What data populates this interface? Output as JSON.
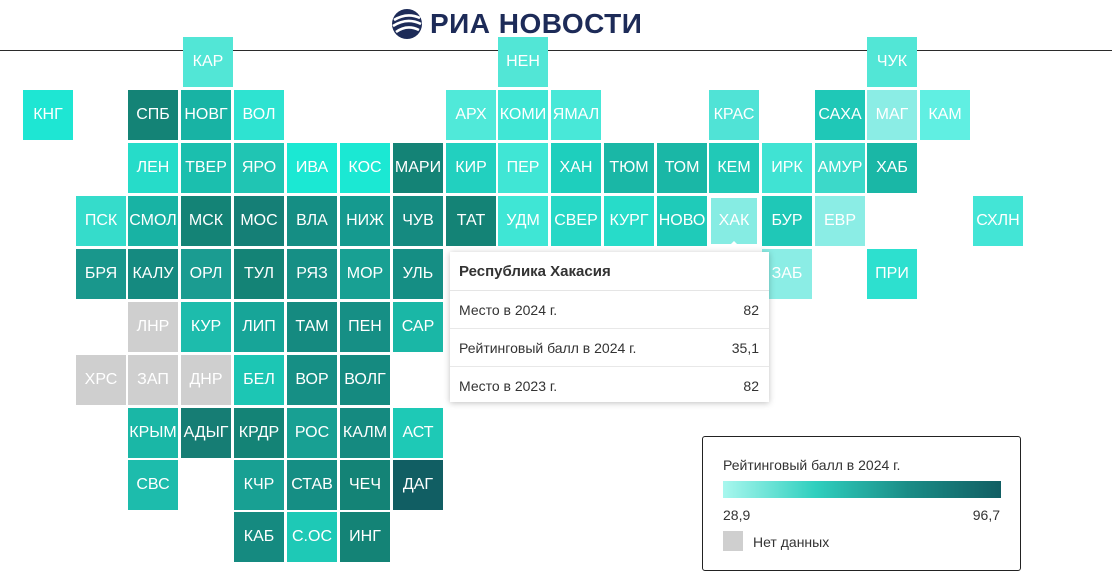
{
  "header": {
    "brand": "РИА НОВОСТИ"
  },
  "colors": {
    "no_data": "#cfcfcf",
    "scale_min": "#a8f7ee",
    "scale_max": "#115e63"
  },
  "tiles": [
    {
      "label": "КАР",
      "color": "#52e6d6"
    },
    {
      "label": "НЕН",
      "color": "#52e6d6"
    },
    {
      "label": "ЧУК",
      "color": "#52e6d6"
    },
    {
      "label": "КНГ",
      "color": "#1ee6d3"
    },
    {
      "label": "СПБ",
      "color": "#148376"
    },
    {
      "label": "НОВГ",
      "color": "#18b3a4"
    },
    {
      "label": "ВОЛ",
      "color": "#2ee3d1"
    },
    {
      "label": "АРХ",
      "color": "#50e9d9"
    },
    {
      "label": "КОМИ",
      "color": "#40e6d5"
    },
    {
      "label": "ЯМАЛ",
      "color": "#48e8d8"
    },
    {
      "label": "КРАС",
      "color": "#50e3d6"
    },
    {
      "label": "САХА",
      "color": "#1fc8b7"
    },
    {
      "label": "МАГ",
      "color": "#8bede5"
    },
    {
      "label": "КАМ",
      "color": "#60efe2"
    },
    {
      "label": "ЛЕН",
      "color": "#26dcc9"
    },
    {
      "label": "ТВЕР",
      "color": "#1bbfae"
    },
    {
      "label": "ЯРО",
      "color": "#20c5b3"
    },
    {
      "label": "ИВА",
      "color": "#1be8d3"
    },
    {
      "label": "КОС",
      "color": "#1be8d3"
    },
    {
      "label": "МАРИ",
      "color": "#148376"
    },
    {
      "label": "КИР",
      "color": "#22d0bf"
    },
    {
      "label": "ПЕР",
      "color": "#40e6d5"
    },
    {
      "label": "ХАН",
      "color": "#1ecfbd"
    },
    {
      "label": "ТЮМ",
      "color": "#1ab7a6"
    },
    {
      "label": "ТОМ",
      "color": "#1ab7a6"
    },
    {
      "label": "КЕМ",
      "color": "#21c9b7"
    },
    {
      "label": "ИРК",
      "color": "#40e3d3"
    },
    {
      "label": "АМУР",
      "color": "#3cd9c9"
    },
    {
      "label": "ХАБ",
      "color": "#1ab7a6"
    },
    {
      "label": "ПСК",
      "color": "#35dccb"
    },
    {
      "label": "СМОЛ",
      "color": "#18b3a4"
    },
    {
      "label": "МСК",
      "color": "#148376"
    },
    {
      "label": "МОС",
      "color": "#157f76"
    },
    {
      "label": "ВЛА",
      "color": "#158e84"
    },
    {
      "label": "НИЖ",
      "color": "#159a8f"
    },
    {
      "label": "ЧУВ",
      "color": "#158a80"
    },
    {
      "label": "ТАТ",
      "color": "#148376"
    },
    {
      "label": "УДМ",
      "color": "#3fe6d5"
    },
    {
      "label": "СВЕР",
      "color": "#27d8c6"
    },
    {
      "label": "КУРГ",
      "color": "#27dcc9"
    },
    {
      "label": "НОВО",
      "color": "#1fcbb9"
    },
    {
      "label": "ХАК",
      "color": "#86ece3"
    },
    {
      "label": "БУР",
      "color": "#1fc8b7"
    },
    {
      "label": "ЕВР",
      "color": "#8bede5"
    },
    {
      "label": "СХЛН",
      "color": "#43e5d6"
    },
    {
      "label": "БРЯ",
      "color": "#19978c"
    },
    {
      "label": "КАЛУ",
      "color": "#158a80"
    },
    {
      "label": "ОРЛ",
      "color": "#1b9c91"
    },
    {
      "label": "ТУЛ",
      "color": "#148376"
    },
    {
      "label": "РЯЗ",
      "color": "#168f85"
    },
    {
      "label": "МОР",
      "color": "#18a093"
    },
    {
      "label": "УЛЬ",
      "color": "#158e84"
    },
    {
      "label": "ЗАБ",
      "color": "#8bede5"
    },
    {
      "label": "ПРИ",
      "color": "#2de0cf"
    },
    {
      "label": "ЛНР",
      "color": "#cfcfcf"
    },
    {
      "label": "КУР",
      "color": "#1dbcac"
    },
    {
      "label": "ЛИП",
      "color": "#17a598"
    },
    {
      "label": "ТАМ",
      "color": "#158a80"
    },
    {
      "label": "ПЕН",
      "color": "#168f85"
    },
    {
      "label": "САР",
      "color": "#1ab7a6"
    },
    {
      "label": "ХРС",
      "color": "#cfcfcf"
    },
    {
      "label": "ЗАП",
      "color": "#cfcfcf"
    },
    {
      "label": "ДНР",
      "color": "#cfcfcf"
    },
    {
      "label": "БЕЛ",
      "color": "#1cc6b4"
    },
    {
      "label": "ВОР",
      "color": "#168f85"
    },
    {
      "label": "ВОЛГ",
      "color": "#158a80"
    },
    {
      "label": "КРЫМ",
      "color": "#1ab7a6"
    },
    {
      "label": "АДЫГ",
      "color": "#167d74"
    },
    {
      "label": "КРДР",
      "color": "#148376"
    },
    {
      "label": "РОС",
      "color": "#18a093"
    },
    {
      "label": "КАЛМ",
      "color": "#158a80"
    },
    {
      "label": "АСТ",
      "color": "#1ec9b6"
    },
    {
      "label": "СВС",
      "color": "#1dbcac"
    },
    {
      "label": "КЧР",
      "color": "#18a093"
    },
    {
      "label": "СТАВ",
      "color": "#158e84"
    },
    {
      "label": "ЧЕЧ",
      "color": "#148376"
    },
    {
      "label": "ДАГ",
      "color": "#115e63"
    },
    {
      "label": "КАБ",
      "color": "#158a80"
    },
    {
      "label": "С.ОС",
      "color": "#1ec9b6"
    },
    {
      "label": "ИНГ",
      "color": "#148376"
    }
  ],
  "tooltip": {
    "title": "Республика Хакасия",
    "rows": [
      {
        "label": "Место в 2024 г.",
        "value": "82"
      },
      {
        "label": "Рейтинговый балл в 2024 г.",
        "value": "35,1"
      },
      {
        "label": "Место в 2023 г.",
        "value": "82"
      }
    ]
  },
  "legend": {
    "title": "Рейтинговый балл в 2024 г.",
    "min": "28,9",
    "max": "96,7",
    "no_data": "Нет данных"
  }
}
